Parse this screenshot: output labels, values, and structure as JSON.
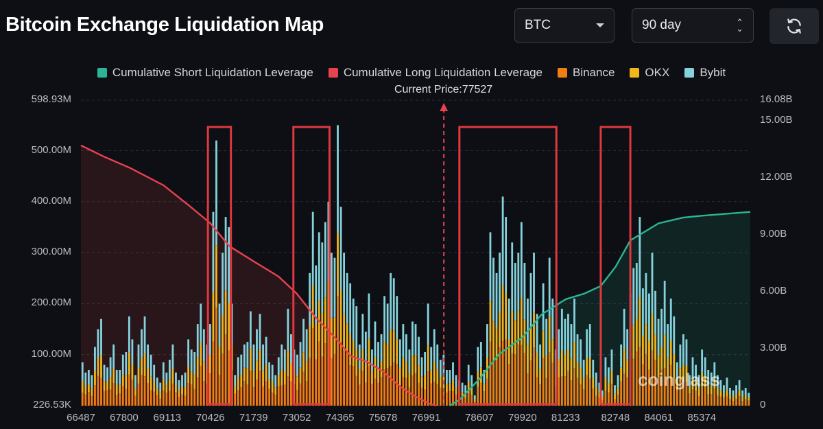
{
  "header": {
    "title": "Bitcoin Exchange Liquidation Map",
    "coin_select": "BTC",
    "range_select": "90 day",
    "refresh_icon": "refresh-icon"
  },
  "legend": [
    {
      "label": "Cumulative Short Liquidation Leverage",
      "color": "#2bb596"
    },
    {
      "label": "Cumulative Long Liquidation Leverage",
      "color": "#e8424f"
    },
    {
      "label": "Binance",
      "color": "#f07f13"
    },
    {
      "label": "OKX",
      "color": "#f2b51c"
    },
    {
      "label": "Bybit",
      "color": "#86d2dc"
    }
  ],
  "current_price_label": "Current Price:77527",
  "watermark": "coinglass",
  "chart_data": {
    "type": "bar",
    "x_ticks": [
      "66487",
      "67800",
      "69113",
      "70426",
      "71739",
      "73052",
      "74365",
      "75678",
      "76991",
      "78607",
      "79920",
      "81233",
      "82748",
      "84061",
      "85374"
    ],
    "y_left_ticks": [
      "598.93M",
      "500.00M",
      "400.00M",
      "300.00M",
      "200.00M",
      "100.00M",
      "226.53K"
    ],
    "y_right_ticks": [
      "16.08B",
      "15.00B",
      "12.00B",
      "9.00B",
      "6.00B",
      "3.00B",
      "0"
    ],
    "y_left_range": [
      0,
      598.93
    ],
    "y_right_range": [
      0,
      16.08
    ],
    "x_range": [
      66487,
      86850
    ],
    "current_price": 77527,
    "highlight_ranges": [
      [
        70350,
        71050
      ],
      [
        72950,
        74050
      ],
      [
        78000,
        80950
      ],
      [
        82300,
        83200
      ]
    ],
    "bar_values_M": [
      85,
      65,
      70,
      60,
      115,
      150,
      170,
      80,
      75,
      95,
      120,
      70,
      70,
      100,
      105,
      175,
      130,
      60,
      120,
      150,
      175,
      120,
      100,
      80,
      55,
      45,
      85,
      65,
      90,
      120,
      65,
      50,
      60,
      65,
      130,
      110,
      105,
      160,
      200,
      150,
      120,
      160,
      380,
      520,
      200,
      300,
      370,
      350,
      200,
      60,
      95,
      100,
      120,
      125,
      185,
      120,
      150,
      180,
      120,
      135,
      85,
      80,
      60,
      95,
      120,
      110,
      190,
      140,
      110,
      100,
      125,
      170,
      150,
      260,
      380,
      275,
      340,
      320,
      360,
      400,
      300,
      290,
      550,
      390,
      300,
      260,
      240,
      210,
      195,
      120,
      180,
      145,
      220,
      110,
      165,
      125,
      140,
      215,
      200,
      260,
      250,
      215,
      130,
      160,
      140,
      110,
      165,
      160,
      135,
      95,
      105,
      200,
      115,
      150,
      120,
      90,
      100,
      70,
      70,
      85,
      60,
      50,
      45,
      40,
      80,
      60,
      20,
      115,
      125,
      70,
      160,
      340,
      290,
      260,
      300,
      410,
      370,
      210,
      320,
      280,
      300,
      360,
      280,
      210,
      260,
      300,
      180,
      120,
      240,
      170,
      290,
      210,
      110,
      150,
      190,
      170,
      180,
      160,
      210,
      140,
      130,
      90,
      150,
      160,
      90,
      65,
      45,
      30,
      95,
      75,
      110,
      40,
      60,
      120,
      190,
      150,
      220,
      270,
      280,
      370,
      230,
      260,
      220,
      300,
      225,
      170,
      190,
      245,
      160,
      210,
      175,
      85,
      120,
      140,
      130,
      60,
      95,
      80,
      60,
      110,
      95,
      70,
      65,
      85,
      60,
      50,
      40,
      55,
      35,
      30,
      40,
      50,
      30,
      35,
      25
    ],
    "long_cumulative_B": [
      [
        66487,
        13.7
      ],
      [
        67200,
        13.1
      ],
      [
        68000,
        12.5
      ],
      [
        69000,
        11.6
      ],
      [
        69800,
        10.5
      ],
      [
        70426,
        9.6
      ],
      [
        71000,
        8.4
      ],
      [
        71739,
        7.6
      ],
      [
        72500,
        6.8
      ],
      [
        73052,
        5.9
      ],
      [
        73600,
        4.7
      ],
      [
        74365,
        3.3
      ],
      [
        74700,
        2.6
      ],
      [
        75200,
        2.3
      ],
      [
        75678,
        1.8
      ],
      [
        76200,
        1.0
      ],
      [
        76700,
        0.45
      ],
      [
        77100,
        0.1
      ],
      [
        77300,
        0
      ]
    ],
    "short_cumulative_B": [
      [
        77700,
        0
      ],
      [
        78000,
        0.3
      ],
      [
        78607,
        1.4
      ],
      [
        79200,
        2.7
      ],
      [
        79920,
        3.6
      ],
      [
        80500,
        4.8
      ],
      [
        81233,
        5.6
      ],
      [
        81800,
        5.9
      ],
      [
        82300,
        6.3
      ],
      [
        82748,
        7.3
      ],
      [
        83200,
        8.7
      ],
      [
        84061,
        9.6
      ],
      [
        84800,
        9.9
      ],
      [
        85374,
        10.0
      ],
      [
        86850,
        10.2
      ]
    ],
    "series": [
      {
        "name": "Binance",
        "share": 0.35
      },
      {
        "name": "OKX",
        "share": 0.25
      },
      {
        "name": "Bybit",
        "share": 0.4
      }
    ]
  }
}
